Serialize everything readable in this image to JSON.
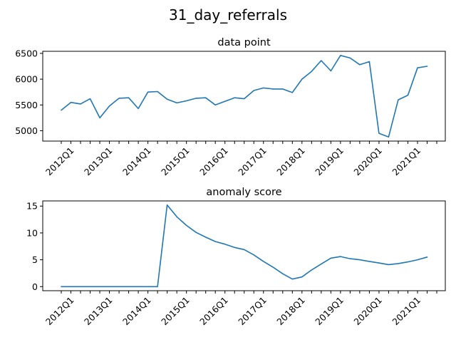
{
  "figure": {
    "title": "31_day_referrals"
  },
  "chart_data": [
    {
      "type": "line",
      "title": "data point",
      "xlabel": "",
      "ylabel": "",
      "x": [
        "2011Q4",
        "2012Q1",
        "2012Q2",
        "2012Q3",
        "2012Q4",
        "2013Q1",
        "2013Q2",
        "2013Q3",
        "2013Q4",
        "2014Q1",
        "2014Q2",
        "2014Q3",
        "2014Q4",
        "2015Q1",
        "2015Q2",
        "2015Q3",
        "2015Q4",
        "2016Q1",
        "2016Q2",
        "2016Q3",
        "2016Q4",
        "2017Q1",
        "2017Q2",
        "2017Q3",
        "2017Q4",
        "2018Q1",
        "2018Q2",
        "2018Q3",
        "2018Q4",
        "2019Q1",
        "2019Q2",
        "2019Q3",
        "2019Q4",
        "2020Q1",
        "2020Q2",
        "2020Q3",
        "2020Q4",
        "2021Q1",
        "2021Q2"
      ],
      "values": [
        5400,
        5550,
        5520,
        5620,
        5250,
        5480,
        5630,
        5640,
        5430,
        5750,
        5760,
        5610,
        5540,
        5580,
        5630,
        5640,
        5500,
        5570,
        5640,
        5620,
        5780,
        5830,
        5810,
        5810,
        5740,
        6000,
        6150,
        6360,
        6160,
        6460,
        6410,
        6280,
        6340,
        4950,
        4880,
        5600,
        5690,
        6220,
        6250
      ],
      "ylim": [
        4800,
        6540
      ],
      "yticks": [
        5000,
        5500,
        6000,
        6500
      ],
      "ytick_labels": [
        "5000",
        "5500",
        "6000",
        "6500"
      ],
      "xticks": [
        "2011Q4",
        "2012Q1",
        "2012Q2",
        "2012Q3",
        "2012Q4",
        "2013Q1",
        "2013Q2",
        "2013Q3",
        "2013Q4",
        "2014Q1",
        "2014Q2",
        "2014Q3",
        "2014Q4",
        "2015Q1",
        "2015Q2",
        "2015Q3",
        "2015Q4",
        "2016Q1",
        "2016Q2",
        "2016Q3",
        "2016Q4",
        "2017Q1",
        "2017Q2",
        "2017Q3",
        "2017Q4",
        "2018Q1",
        "2018Q2",
        "2018Q3",
        "2018Q4",
        "2019Q1",
        "2019Q2",
        "2019Q3",
        "2019Q4",
        "2020Q1",
        "2020Q2",
        "2020Q3",
        "2020Q4",
        "2021Q1",
        "2021Q2",
        "2021Q3"
      ],
      "xtick_labels": [
        "2012Q1",
        "2013Q1",
        "2014Q1",
        "2015Q1",
        "2016Q1",
        "2017Q1",
        "2018Q1",
        "2019Q1",
        "2020Q1",
        "2021Q1"
      ],
      "grid": false,
      "color": "#1f77b4"
    },
    {
      "type": "line",
      "title": "anomaly score",
      "xlabel": "",
      "ylabel": "",
      "x": [
        "2011Q4",
        "2012Q1",
        "2012Q2",
        "2012Q3",
        "2012Q4",
        "2013Q1",
        "2013Q2",
        "2013Q3",
        "2013Q4",
        "2014Q1",
        "2014Q2",
        "2014Q3",
        "2014Q4",
        "2015Q1",
        "2015Q2",
        "2015Q3",
        "2015Q4",
        "2016Q1",
        "2016Q2",
        "2016Q3",
        "2016Q4",
        "2017Q1",
        "2017Q2",
        "2017Q3",
        "2017Q4",
        "2018Q1",
        "2018Q2",
        "2018Q3",
        "2018Q4",
        "2019Q1",
        "2019Q2",
        "2019Q3",
        "2019Q4",
        "2020Q1",
        "2020Q2",
        "2020Q3",
        "2020Q4",
        "2021Q1",
        "2021Q2"
      ],
      "values": [
        0,
        0,
        0,
        0,
        0,
        0,
        0,
        0,
        0,
        0,
        0,
        15.2,
        13.0,
        11.4,
        10.1,
        9.2,
        8.4,
        7.9,
        7.3,
        6.9,
        5.9,
        4.7,
        3.6,
        2.4,
        1.4,
        1.8,
        3.1,
        4.2,
        5.3,
        5.6,
        5.2,
        5.0,
        4.7,
        4.4,
        4.1,
        4.3,
        4.6,
        5.0,
        5.5
      ],
      "ylim": [
        -0.76,
        15.96
      ],
      "yticks": [
        0,
        5,
        10,
        15
      ],
      "ytick_labels": [
        "0",
        "5",
        "10",
        "15"
      ],
      "xticks": [
        "2011Q4",
        "2012Q1",
        "2012Q2",
        "2012Q3",
        "2012Q4",
        "2013Q1",
        "2013Q2",
        "2013Q3",
        "2013Q4",
        "2014Q1",
        "2014Q2",
        "2014Q3",
        "2014Q4",
        "2015Q1",
        "2015Q2",
        "2015Q3",
        "2015Q4",
        "2016Q1",
        "2016Q2",
        "2016Q3",
        "2016Q4",
        "2017Q1",
        "2017Q2",
        "2017Q3",
        "2017Q4",
        "2018Q1",
        "2018Q2",
        "2018Q3",
        "2018Q4",
        "2019Q1",
        "2019Q2",
        "2019Q3",
        "2019Q4",
        "2020Q1",
        "2020Q2",
        "2020Q3",
        "2020Q4",
        "2021Q1",
        "2021Q2",
        "2021Q3"
      ],
      "xtick_labels": [
        "2012Q1",
        "2013Q1",
        "2014Q1",
        "2015Q1",
        "2016Q1",
        "2017Q1",
        "2018Q1",
        "2019Q1",
        "2020Q1",
        "2021Q1"
      ],
      "grid": false,
      "color": "#1f77b4"
    }
  ]
}
